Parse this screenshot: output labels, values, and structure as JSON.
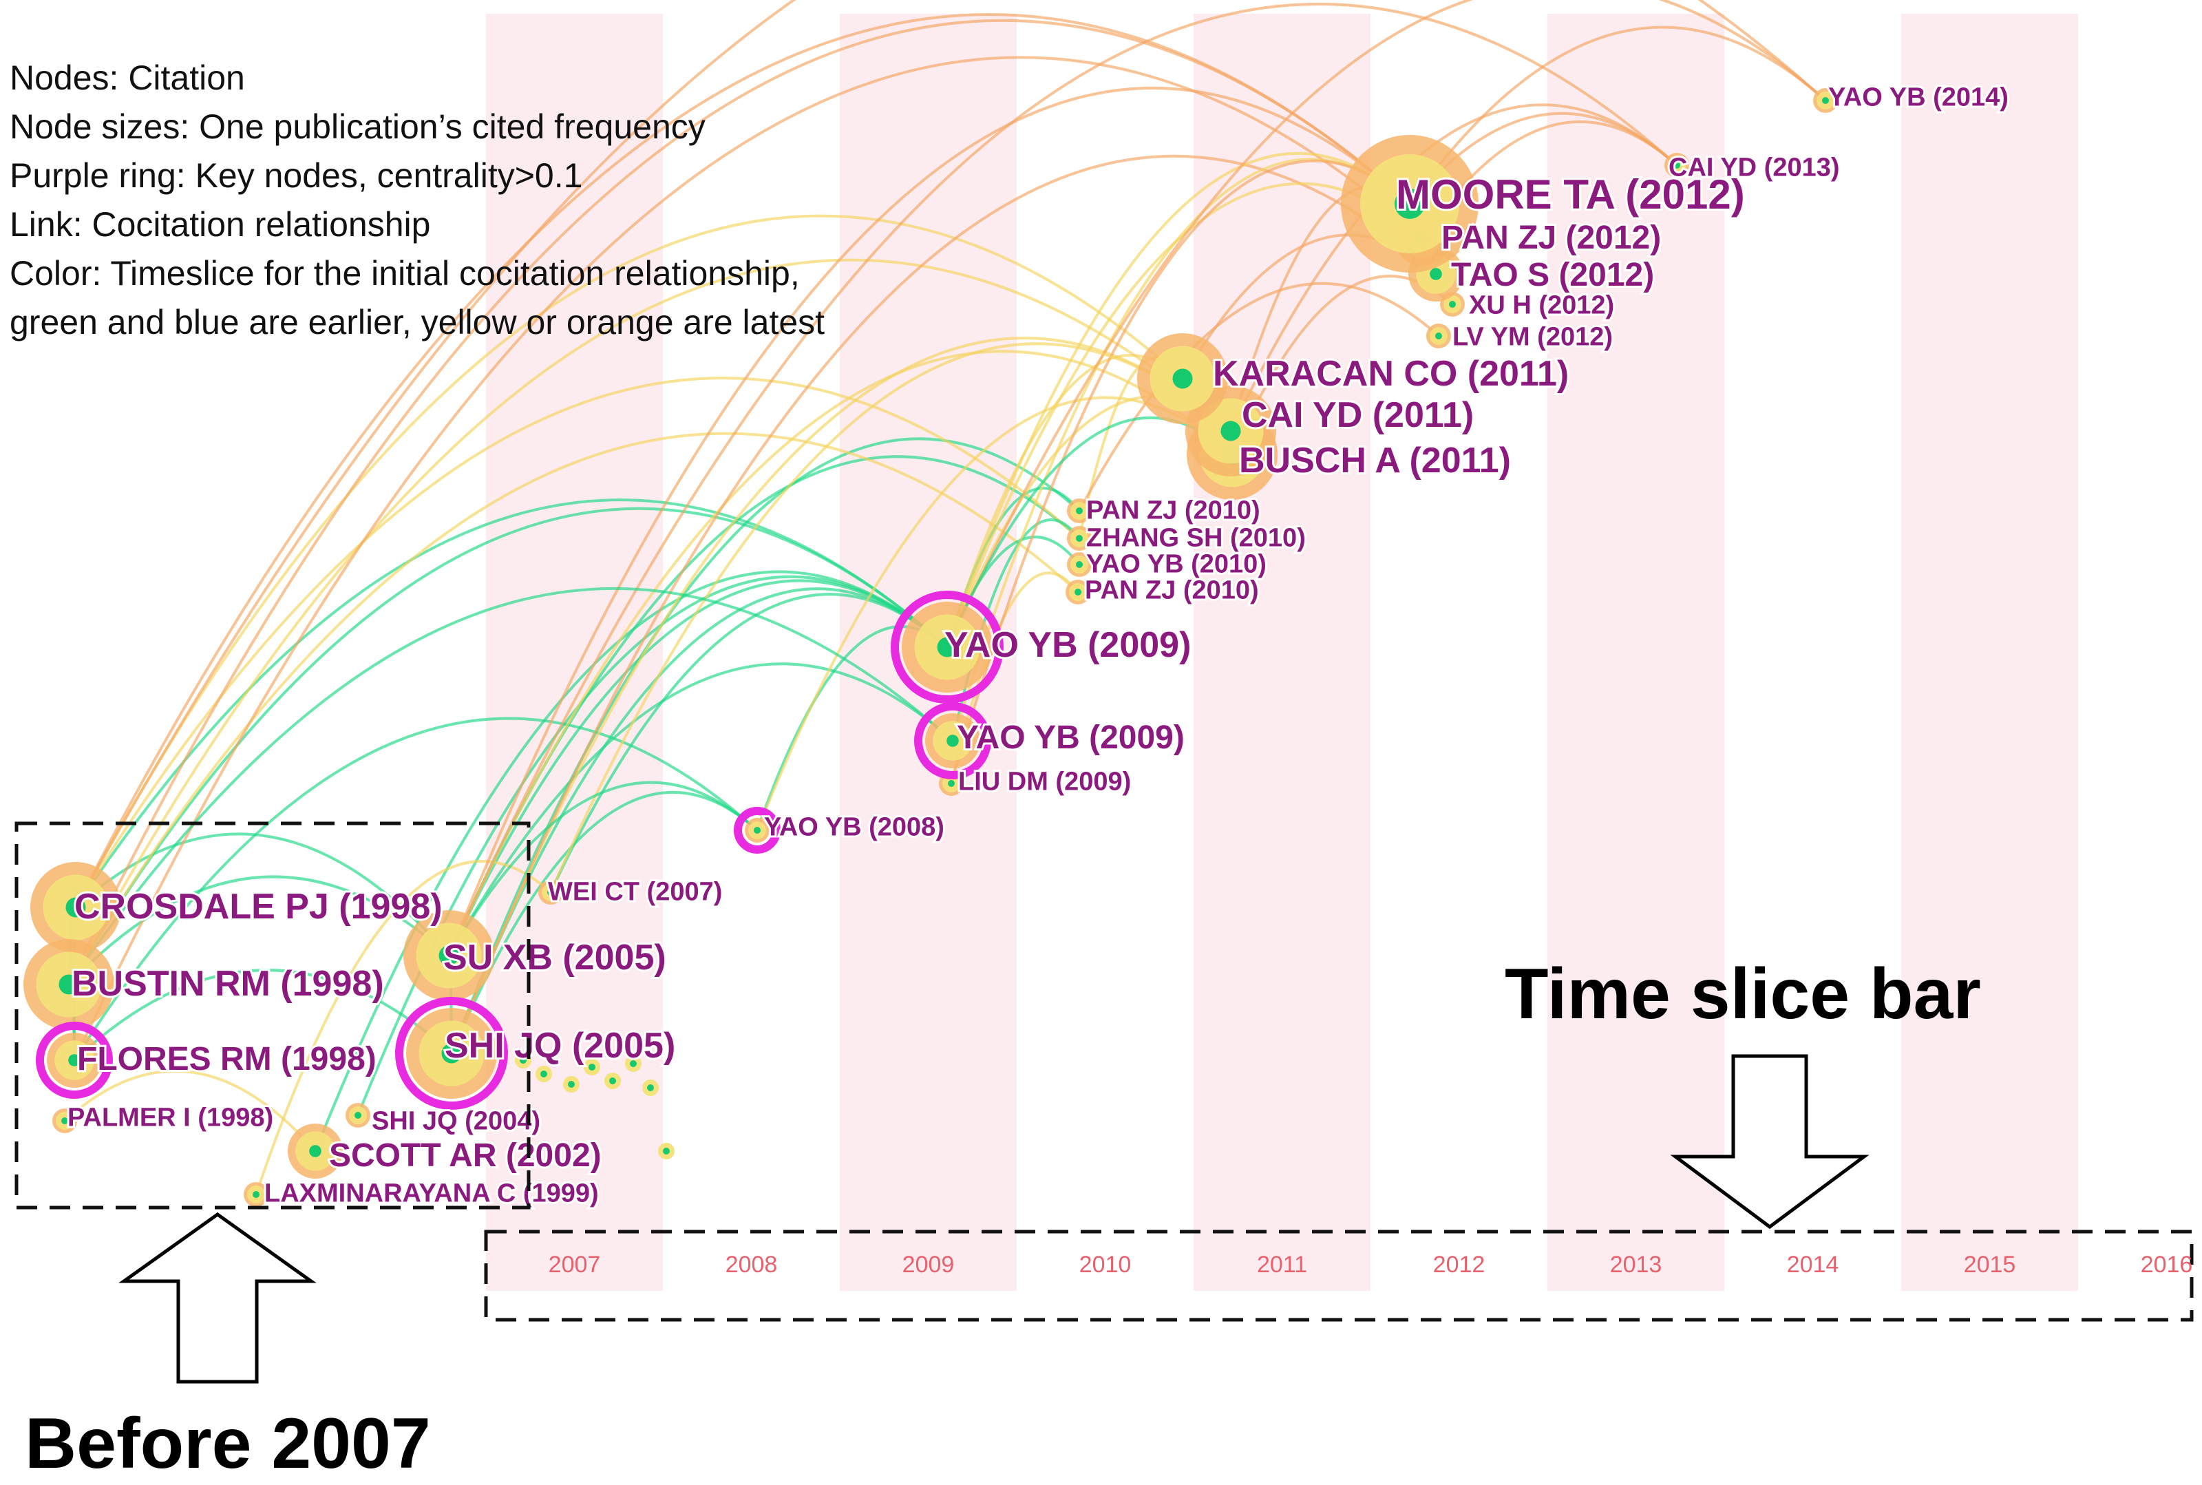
{
  "legend": {
    "lines": [
      "Nodes: Citation",
      "Node sizes: One publication’s cited frequency",
      "Purple ring: Key nodes, centrality>0.1",
      "Link: Cocitation relationship",
      "Color: Timeslice for the initial cocitation relationship,",
      "green and blue  are earlier, yellow or orange are latest"
    ]
  },
  "callouts": {
    "time_slice_bar": "Time slice bar",
    "before_2007": "Before 2007"
  },
  "timeline": {
    "years": [
      "2007",
      "2008",
      "2009",
      "2010",
      "2011",
      "2012",
      "2013",
      "2014",
      "2015",
      "2016"
    ],
    "shaded_years": [
      "2007",
      "2009",
      "2011",
      "2013",
      "2015"
    ]
  },
  "colors": {
    "stripe": "#fdecef",
    "year_label": "#e8626e",
    "node_label": "#8b1a7f",
    "key_ring": "#e82ae0",
    "node_outer": "#f7b56a",
    "node_mid": "#f4e27a",
    "node_core": "#16c86e",
    "link_early": "#19d884",
    "link_mid": "#f5d35a",
    "link_late": "#f4a460"
  },
  "nodes": [
    {
      "id": "crosdale",
      "label": "CROSDALE PJ (1998)",
      "size": 3,
      "key": false
    },
    {
      "id": "bustin",
      "label": "BUSTIN RM (1998)",
      "size": 3,
      "key": false
    },
    {
      "id": "flores",
      "label": "FLORES RM (1998)",
      "size": 2,
      "key": true
    },
    {
      "id": "palmer",
      "label": "PALMER I (1998)",
      "size": 1,
      "key": false
    },
    {
      "id": "laxminarayana",
      "label": "LAXMINARAYANA C (1999)",
      "size": 1,
      "key": false
    },
    {
      "id": "scott",
      "label": "SCOTT AR (2002)",
      "size": 2,
      "key": false
    },
    {
      "id": "shijq2004",
      "label": "SHI JQ (2004)",
      "size": 1,
      "key": false
    },
    {
      "id": "suxb",
      "label": "SU XB (2005)",
      "size": 3,
      "key": false
    },
    {
      "id": "shijq2005",
      "label": "SHI JQ (2005)",
      "size": 3,
      "key": true
    },
    {
      "id": "weict",
      "label": "WEI CT (2007)",
      "size": 1,
      "key": false
    },
    {
      "id": "yaoyb2008",
      "label": "YAO YB (2008)",
      "size": 1,
      "key": true
    },
    {
      "id": "liudm",
      "label": "LIU DM (2009)",
      "size": 1,
      "key": false
    },
    {
      "id": "yaoyb2009b",
      "label": "YAO YB (2009)",
      "size": 2,
      "key": true
    },
    {
      "id": "yaoyb2009a",
      "label": "YAO YB (2009)",
      "size": 3,
      "key": true
    },
    {
      "id": "panzj2010b",
      "label": "PAN ZJ (2010)",
      "size": 1,
      "key": false
    },
    {
      "id": "yaoyb2010",
      "label": "YAO YB (2010)",
      "size": 1,
      "key": false
    },
    {
      "id": "zhangsh",
      "label": "ZHANG SH (2010)",
      "size": 1,
      "key": false
    },
    {
      "id": "panzj2010a",
      "label": "PAN ZJ (2010)",
      "size": 1,
      "key": false
    },
    {
      "id": "busch",
      "label": "BUSCH A (2011)",
      "size": 3,
      "key": false
    },
    {
      "id": "caiyd2011",
      "label": "CAI YD (2011)",
      "size": 3,
      "key": false
    },
    {
      "id": "karacan",
      "label": "KARACAN CO (2011)",
      "size": 3,
      "key": false
    },
    {
      "id": "lvym",
      "label": "LV YM (2012)",
      "size": 1,
      "key": false
    },
    {
      "id": "xuh",
      "label": "XU H (2012)",
      "size": 1,
      "key": false
    },
    {
      "id": "taos",
      "label": "TAO S (2012)",
      "size": 2,
      "key": false
    },
    {
      "id": "panzj2012",
      "label": "PAN ZJ (2012)",
      "size": 2,
      "key": false
    },
    {
      "id": "moore",
      "label": "MOORE TA (2012)",
      "size": 4,
      "key": false
    },
    {
      "id": "caiyd2013",
      "label": "CAI YD (2013)",
      "size": 1,
      "key": false
    },
    {
      "id": "yaoyb2014",
      "label": "YAO YB (2014)",
      "size": 1,
      "key": false
    }
  ],
  "links": [
    [
      "crosdale",
      "bustin",
      0
    ],
    [
      "crosdale",
      "flores",
      0
    ],
    [
      "bustin",
      "flores",
      0
    ],
    [
      "crosdale",
      "suxb",
      0
    ],
    [
      "bustin",
      "suxb",
      0
    ],
    [
      "flores",
      "shijq2005",
      0
    ],
    [
      "suxb",
      "shijq2005",
      0
    ],
    [
      "palmer",
      "scott",
      1
    ],
    [
      "crosdale",
      "yaoyb2009a",
      0
    ],
    [
      "bustin",
      "yaoyb2009a",
      0
    ],
    [
      "flores",
      "yaoyb2008",
      0
    ],
    [
      "suxb",
      "yaoyb2009a",
      0
    ],
    [
      "shijq2005",
      "yaoyb2009a",
      0
    ],
    [
      "suxb",
      "yaoyb2009b",
      0
    ],
    [
      "shijq2005",
      "yaoyb2008",
      0
    ],
    [
      "scott",
      "yaoyb2009a",
      0
    ],
    [
      "shijq2004",
      "yaoyb2009a",
      0
    ],
    [
      "laxminarayana",
      "weict",
      1
    ],
    [
      "weict",
      "yaoyb2009a",
      0
    ],
    [
      "yaoyb2008",
      "yaoyb2009a",
      0
    ],
    [
      "suxb",
      "zhangsh",
      0
    ],
    [
      "shijq2005",
      "panzj2010a",
      0
    ],
    [
      "crosdale",
      "zhangsh",
      1
    ],
    [
      "bustin",
      "panzj2010b",
      1
    ],
    [
      "yaoyb2009a",
      "panzj2010a",
      0
    ],
    [
      "yaoyb2009a",
      "yaoyb2010",
      0
    ],
    [
      "yaoyb2009b",
      "zhangsh",
      0
    ],
    [
      "liudm",
      "panzj2010b",
      1
    ],
    [
      "crosdale",
      "karacan",
      1
    ],
    [
      "bustin",
      "caiyd2011",
      1
    ],
    [
      "suxb",
      "busch",
      1
    ],
    [
      "shijq2005",
      "caiyd2011",
      1
    ],
    [
      "yaoyb2009a",
      "caiyd2011",
      1
    ],
    [
      "yaoyb2009a",
      "karacan",
      1
    ],
    [
      "yaoyb2008",
      "busch",
      1
    ],
    [
      "zhangsh",
      "karacan",
      1
    ],
    [
      "crosdale",
      "moore",
      2
    ],
    [
      "bustin",
      "moore",
      2
    ],
    [
      "flores",
      "panzj2012",
      2
    ],
    [
      "suxb",
      "moore",
      2
    ],
    [
      "shijq2005",
      "taos",
      2
    ],
    [
      "yaoyb2009a",
      "moore",
      1
    ],
    [
      "yaoyb2009a",
      "panzj2012",
      1
    ],
    [
      "caiyd2011",
      "moore",
      2
    ],
    [
      "karacan",
      "taos",
      2
    ],
    [
      "busch",
      "xuh",
      2
    ],
    [
      "panzj2010a",
      "lvym",
      2
    ],
    [
      "yaoyb2009b",
      "moore",
      1
    ],
    [
      "moore",
      "caiyd2013",
      2
    ],
    [
      "panzj2012",
      "caiyd2013",
      2
    ],
    [
      "caiyd2011",
      "caiyd2013",
      2
    ],
    [
      "moore",
      "yaoyb2014",
      2
    ],
    [
      "crosdale",
      "yaoyb2014",
      2
    ],
    [
      "yaoyb2009a",
      "yaoyb2014",
      2
    ],
    [
      "suxb",
      "caiyd2013",
      2
    ],
    [
      "liudm",
      "moore",
      2
    ],
    [
      "weict",
      "caiyd2011",
      1
    ],
    [
      "yaoyb2009a",
      "busch",
      0
    ],
    [
      "suxb",
      "yaoyb2008",
      0
    ],
    [
      "bustin",
      "yaoyb2009b",
      0
    ]
  ]
}
